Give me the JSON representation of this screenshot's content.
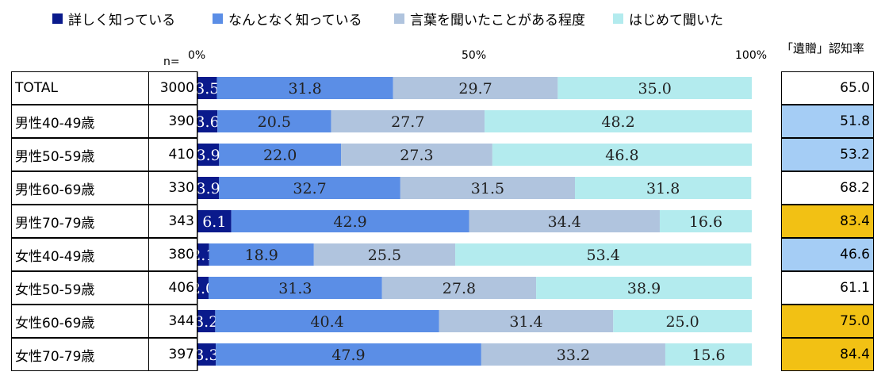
{
  "chart_data": {
    "type": "bar",
    "orientation": "horizontal",
    "stacked": true,
    "series": [
      {
        "name": "詳しく知っている",
        "color": "#0a1a8c",
        "values": [
          3.5,
          3.6,
          3.9,
          3.9,
          6.1,
          2.1,
          2.0,
          3.2,
          3.3
        ]
      },
      {
        "name": "なんとなく知っている",
        "color": "#5b8ee6",
        "values": [
          31.8,
          20.5,
          22.0,
          32.7,
          42.9,
          18.9,
          31.3,
          40.4,
          47.9
        ]
      },
      {
        "name": "言葉を聞いたことがある程度",
        "color": "#b0c4de",
        "values": [
          29.7,
          27.7,
          27.3,
          31.5,
          34.4,
          25.5,
          27.8,
          31.4,
          33.2
        ]
      },
      {
        "name": "はじめて聞いた",
        "color": "#b3ebee",
        "values": [
          35.0,
          48.2,
          46.8,
          31.8,
          16.6,
          53.4,
          38.9,
          25.0,
          15.6
        ]
      }
    ],
    "categories": [
      "TOTAL",
      "男性40-49歳",
      "男性50-59歳",
      "男性60-69歳",
      "男性70-79歳",
      "女性40-49歳",
      "女性50-59歳",
      "女性60-69歳",
      "女性70-79歳"
    ],
    "n": [
      "3000",
      "390",
      "410",
      "330",
      "343",
      "380",
      "406",
      "344",
      "397"
    ],
    "n_header": "n=",
    "axis_ticks": [
      "0%",
      "50%",
      "100%"
    ],
    "xlim": [
      0,
      100
    ],
    "rate_header": "「遺贈」認知率",
    "rates": [
      "65.0",
      "51.8",
      "53.2",
      "68.2",
      "83.4",
      "46.6",
      "61.1",
      "75.0",
      "84.4"
    ],
    "rate_colors": [
      "#ffffff",
      "#a5cdf5",
      "#a5cdf5",
      "#ffffff",
      "#f2c114",
      "#a5cdf5",
      "#ffffff",
      "#f2c114",
      "#f2c114"
    ],
    "legend_position": "top"
  }
}
